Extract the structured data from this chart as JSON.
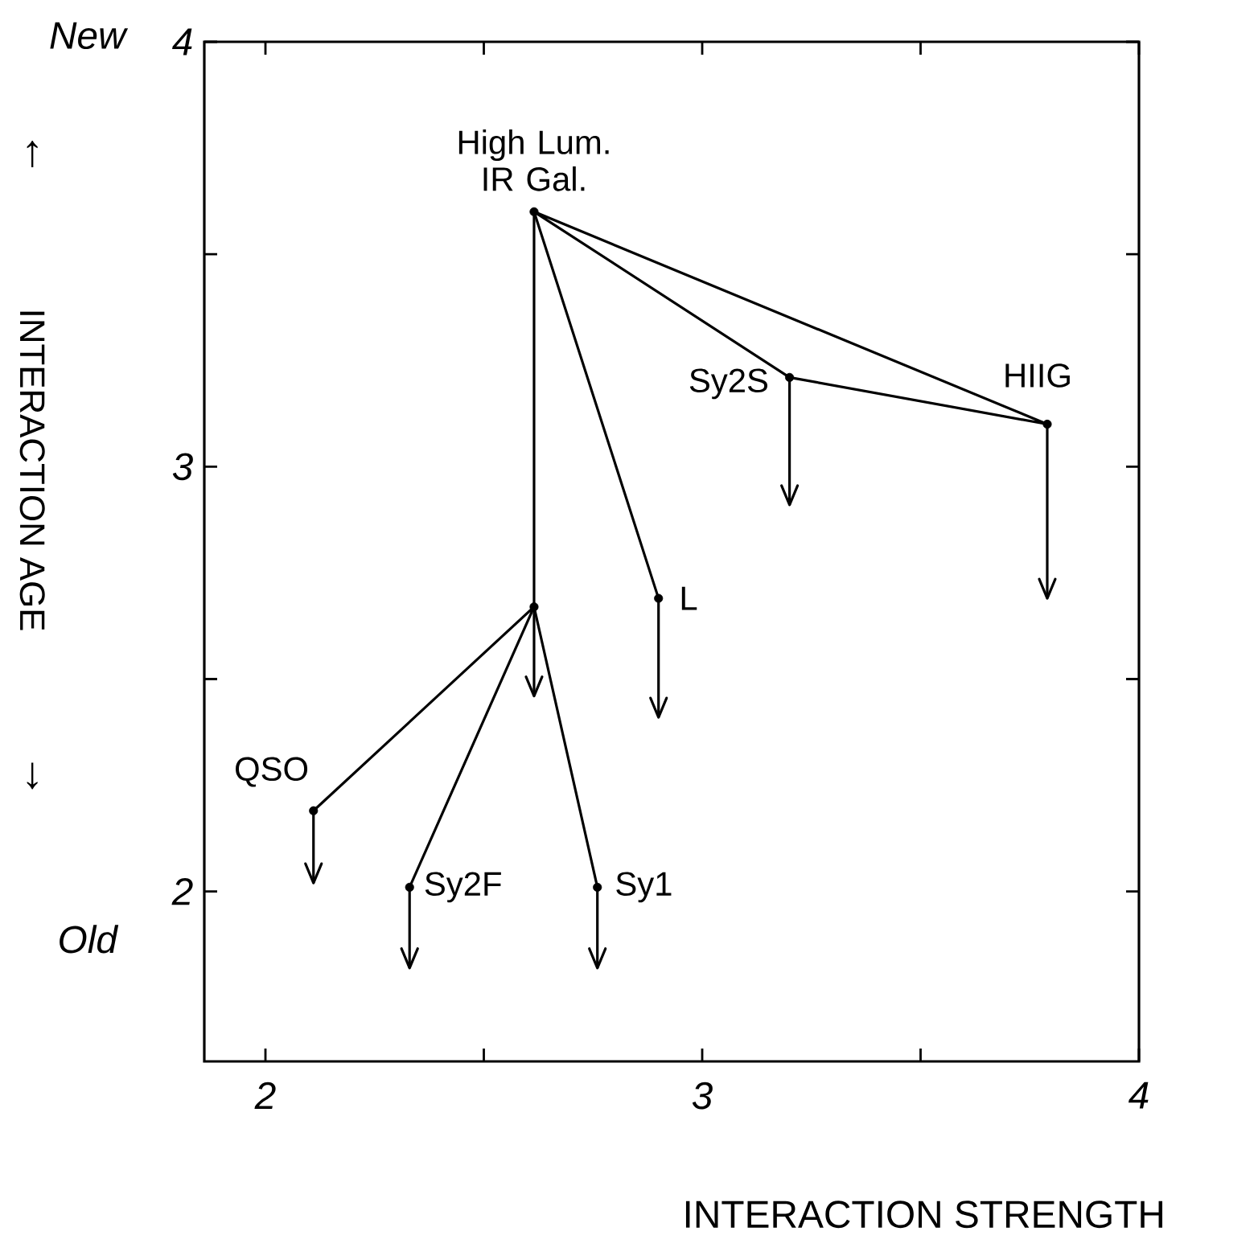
{
  "chart_data": {
    "type": "scatter",
    "xlabel": "INTERACTION STRENGTH",
    "ylabel": "INTERACTION AGE",
    "xlim": [
      1.86,
      4
    ],
    "ylim": [
      1.6,
      4
    ],
    "xticks": [
      2,
      {
        "value": 2.5,
        "label": null
      },
      3,
      {
        "value": 3.5,
        "label": null
      },
      4
    ],
    "yticks": [
      2,
      {
        "value": 2.5,
        "label": null
      },
      3,
      {
        "value": 3.5,
        "label": null
      },
      4
    ],
    "series": [
      {
        "type": "line",
        "marker": "none",
        "color": "#000000",
        "x": [
          2.615,
          3.79,
          3.2,
          2.615,
          2.9
        ],
        "values": [
          3.6,
          3.1,
          3.21,
          3.6,
          2.69
        ]
      },
      {
        "type": "line",
        "marker": "none",
        "color": "#000000",
        "x": [
          2.11,
          2.615,
          2.33
        ],
        "values": [
          2.19,
          2.67,
          2.01
        ]
      },
      {
        "type": "line",
        "marker": "none",
        "color": "#000000",
        "x": [
          2.76,
          2.615,
          2.615
        ],
        "values": [
          2.01,
          2.67,
          3.6
        ]
      },
      {
        "marker": "circle",
        "color": "#000000",
        "x": [
          2.615,
          2.615,
          3.2,
          3.79,
          2.9,
          2.11,
          2.33,
          2.76
        ],
        "values": [
          3.6,
          2.67,
          3.21,
          3.1,
          2.69,
          2.19,
          2.01,
          2.01
        ],
        "errors": [
          null,
          [
            2.46,
            2.67
          ],
          [
            2.91,
            3.21
          ],
          [
            2.69,
            3.1
          ],
          [
            2.41,
            2.69
          ],
          [
            2.02,
            2.19
          ],
          [
            1.82,
            2.01
          ],
          [
            1.82,
            2.01
          ]
        ]
      }
    ],
    "annotations": [
      {
        "text": "High Lum. IR Gal.",
        "x": 2.615,
        "y": 3.6
      },
      {
        "text": "HIIG",
        "x": 3.79,
        "y": 3.1
      },
      {
        "text": "Sy2S",
        "x": 3.2,
        "y": 3.21
      },
      {
        "text": "L",
        "x": 2.9,
        "y": 2.69
      },
      {
        "text": "QSO",
        "x": 2.11,
        "y": 2.19
      },
      {
        "text": "Sy2F",
        "x": 2.33,
        "y": 2.01
      },
      {
        "text": "Sy1",
        "x": 2.76,
        "y": 2.01
      },
      "New",
      "↑",
      "↓",
      "Old"
    ]
  }
}
